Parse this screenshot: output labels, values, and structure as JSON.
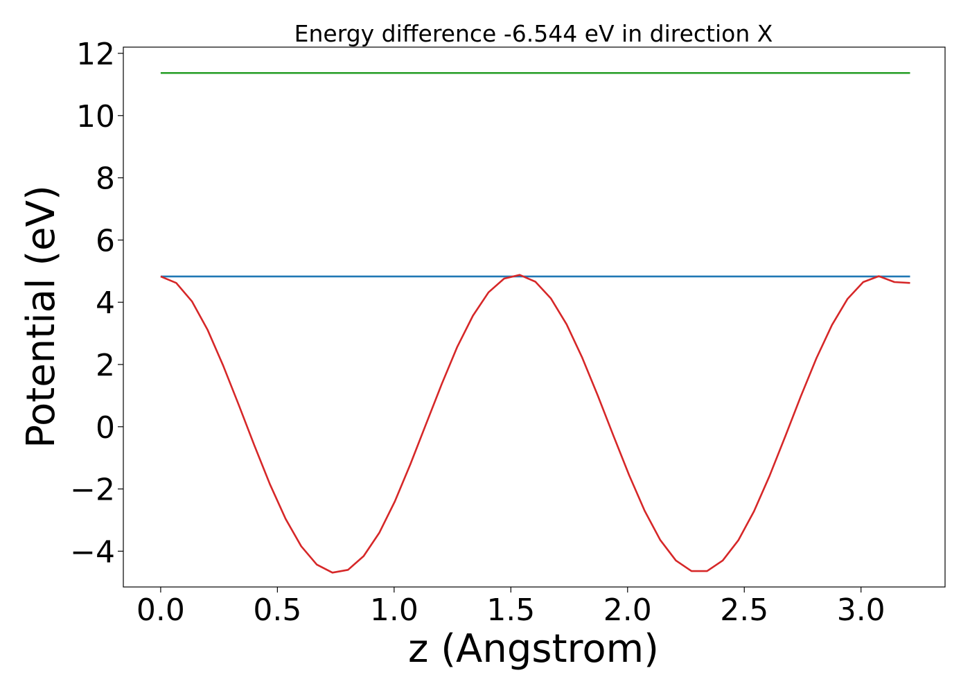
{
  "chart_data": {
    "type": "line",
    "title": "Energy difference -6.544 eV in direction X",
    "xlabel": "z (Angstrom)",
    "ylabel": "Potential (eV)",
    "xlim": [
      -0.16,
      3.36
    ],
    "ylim": [
      -5.15,
      12.2
    ],
    "x_ticks": [
      0.0,
      0.5,
      1.0,
      1.5,
      2.0,
      2.5,
      3.0
    ],
    "x_tick_labels": [
      "0.0",
      "0.5",
      "1.0",
      "1.5",
      "2.0",
      "2.5",
      "3.0"
    ],
    "y_ticks": [
      -4,
      -2,
      0,
      2,
      4,
      6,
      8,
      10,
      12
    ],
    "y_tick_labels": [
      "−4",
      "−2",
      "0",
      "2",
      "4",
      "6",
      "8",
      "10",
      "12"
    ],
    "grid": false,
    "legend": null,
    "series": [
      {
        "color": "#2ca02c",
        "x": [
          0.0,
          3.21
        ],
        "y": [
          11.37,
          11.37
        ]
      },
      {
        "color": "#1f77b4",
        "x": [
          0.0,
          3.21
        ],
        "y": [
          4.83,
          4.83
        ]
      },
      {
        "color": "#d62728",
        "x": [
          0.0,
          0.0669,
          0.1338,
          0.2006,
          0.2675,
          0.3344,
          0.4013,
          0.4681,
          0.535,
          0.6019,
          0.6688,
          0.7356,
          0.8025,
          0.8694,
          0.9363,
          1.0031,
          1.07,
          1.1369,
          1.2038,
          1.2706,
          1.3375,
          1.4044,
          1.4713,
          1.5381,
          1.605,
          1.6719,
          1.7388,
          1.8056,
          1.8725,
          1.9394,
          2.0063,
          2.0731,
          2.14,
          2.2069,
          2.2738,
          2.3406,
          2.4075,
          2.4744,
          2.5413,
          2.6081,
          2.675,
          2.7419,
          2.8088,
          2.8756,
          2.9425,
          3.0094,
          3.0763,
          3.1431,
          3.21
        ],
        "y": [
          4.83,
          4.62,
          4.03,
          3.12,
          1.97,
          0.7,
          -0.6,
          -1.85,
          -2.96,
          -3.84,
          -4.43,
          -4.69,
          -4.6,
          -4.16,
          -3.41,
          -2.4,
          -1.2,
          0.09,
          1.37,
          2.57,
          3.57,
          4.32,
          4.76,
          4.88,
          4.66,
          4.12,
          3.29,
          2.22,
          1.0,
          -0.29,
          -1.55,
          -2.7,
          -3.64,
          -4.3,
          -4.64,
          -4.64,
          -4.3,
          -3.65,
          -2.72,
          -1.58,
          -0.32,
          0.97,
          2.2,
          3.27,
          4.11,
          4.65,
          4.84,
          4.65,
          4.62
        ]
      }
    ]
  }
}
